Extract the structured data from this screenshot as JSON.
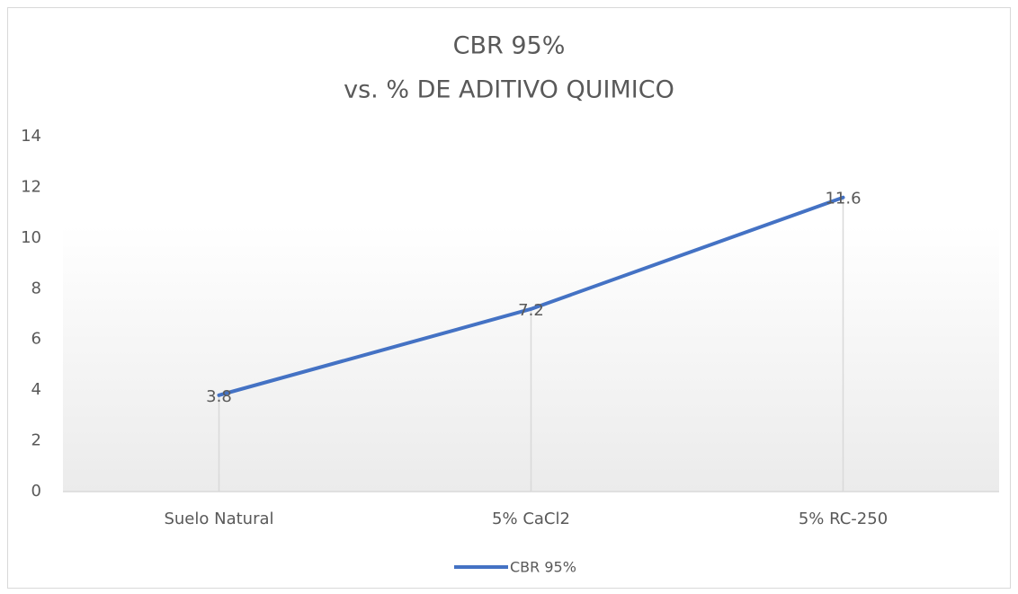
{
  "chart_data": {
    "type": "line",
    "title": [
      "CBR 95%",
      "vs. % DE ADITIVO QUIMICO"
    ],
    "categories": [
      "Suelo Natural",
      "5% CaCl2",
      "5% RC-250"
    ],
    "series": [
      {
        "name": "CBR 95%",
        "color": "#4472c4",
        "values": [
          3.8,
          7.2,
          11.6
        ]
      }
    ],
    "ylim": [
      0,
      14
    ],
    "yticks": [
      0,
      2,
      4,
      6,
      8,
      10,
      12,
      14
    ],
    "grid": false,
    "drop_lines": true,
    "data_labels": true,
    "legend": "bottom"
  }
}
